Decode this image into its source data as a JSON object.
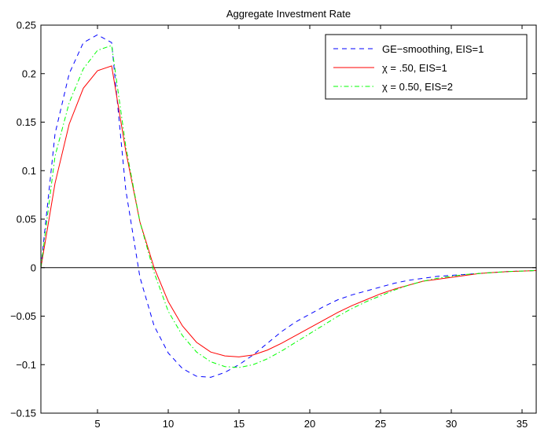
{
  "chart_data": {
    "type": "line",
    "title": "Aggregate Investment Rate",
    "xlabel": "",
    "ylabel": "",
    "xlim": [
      1,
      36
    ],
    "ylim": [
      -0.15,
      0.25
    ],
    "xticks": [
      5,
      10,
      15,
      20,
      25,
      30,
      35
    ],
    "yticks": [
      -0.15,
      -0.1,
      -0.05,
      0,
      0.05,
      0.1,
      0.15,
      0.2,
      0.25
    ],
    "ytick_labels": [
      "−0.15",
      "−0.1",
      "−0.05",
      "0",
      "0.05",
      "0.1",
      "0.15",
      "0.2",
      "0.25"
    ],
    "grid": false,
    "legend_position": "top-right",
    "zero_line": true,
    "x": [
      1,
      2,
      3,
      4,
      5,
      6,
      7,
      8,
      9,
      10,
      11,
      12,
      13,
      14,
      15,
      16,
      17,
      18,
      19,
      20,
      21,
      22,
      23,
      24,
      25,
      26,
      27,
      28,
      29,
      30,
      31,
      32,
      33,
      34,
      35,
      36
    ],
    "series": [
      {
        "name": "GE−smoothing, EIS=1",
        "color": "#0000ff",
        "style": "dashed",
        "values": [
          0.0,
          0.138,
          0.2,
          0.232,
          0.24,
          0.232,
          0.08,
          -0.01,
          -0.06,
          -0.088,
          -0.104,
          -0.112,
          -0.113,
          -0.108,
          -0.1,
          -0.09,
          -0.078,
          -0.066,
          -0.056,
          -0.048,
          -0.04,
          -0.033,
          -0.028,
          -0.024,
          -0.02,
          -0.016,
          -0.013,
          -0.011,
          -0.009,
          -0.008,
          -0.007,
          -0.006,
          -0.005,
          -0.004,
          -0.0035,
          -0.003
        ]
      },
      {
        "name": "χ = .50, EIS=1",
        "color": "#ff0000",
        "style": "solid",
        "values": [
          0.0,
          0.087,
          0.148,
          0.185,
          0.203,
          0.208,
          0.12,
          0.047,
          0.0,
          -0.035,
          -0.06,
          -0.077,
          -0.087,
          -0.091,
          -0.092,
          -0.09,
          -0.085,
          -0.078,
          -0.07,
          -0.062,
          -0.054,
          -0.046,
          -0.039,
          -0.033,
          -0.027,
          -0.022,
          -0.018,
          -0.014,
          -0.012,
          -0.01,
          -0.008,
          -0.006,
          -0.005,
          -0.004,
          -0.0035,
          -0.003
        ]
      },
      {
        "name": "χ = 0.50, EIS=2",
        "color": "#00ff00",
        "style": "dashdot",
        "values": [
          0.0,
          0.115,
          0.17,
          0.205,
          0.224,
          0.229,
          0.125,
          0.047,
          -0.005,
          -0.045,
          -0.07,
          -0.087,
          -0.097,
          -0.102,
          -0.103,
          -0.1,
          -0.094,
          -0.086,
          -0.077,
          -0.068,
          -0.059,
          -0.05,
          -0.042,
          -0.035,
          -0.029,
          -0.023,
          -0.018,
          -0.014,
          -0.011,
          -0.009,
          -0.007,
          -0.006,
          -0.005,
          -0.004,
          -0.0035,
          -0.003
        ]
      }
    ]
  }
}
